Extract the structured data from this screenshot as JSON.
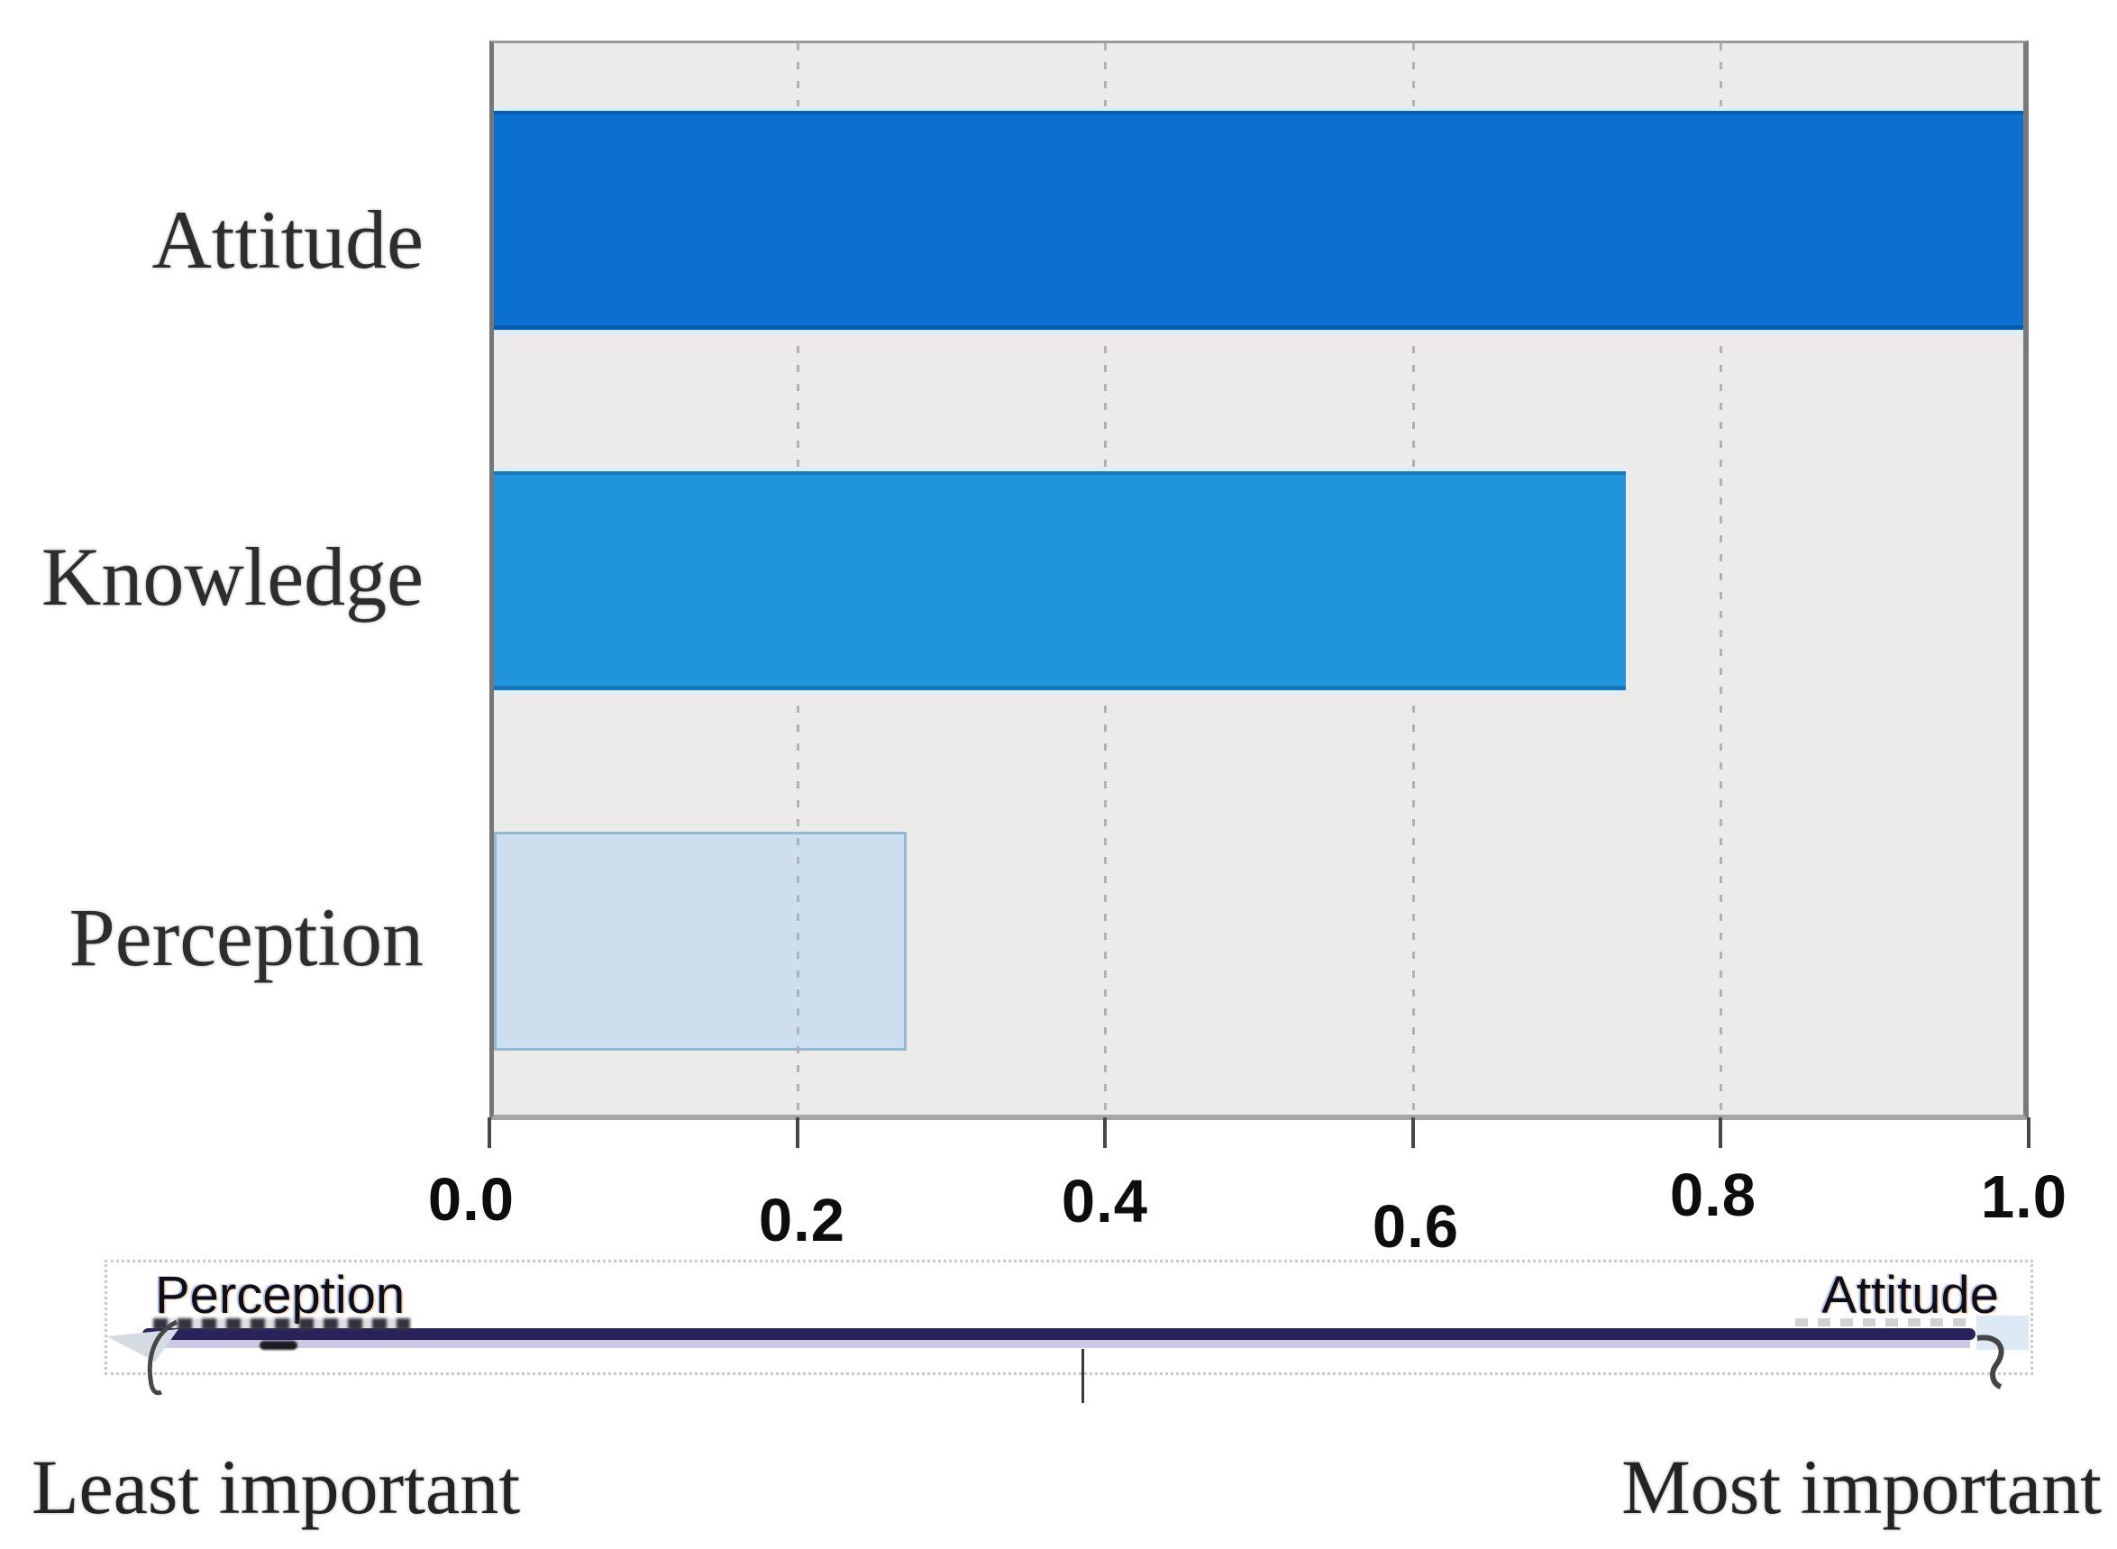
{
  "chart_data": {
    "type": "bar",
    "orientation": "horizontal",
    "title": "",
    "xlabel": "",
    "ylabel": "",
    "categories": [
      "Attitude",
      "Knowledge",
      "Perception"
    ],
    "values": [
      1.0,
      0.74,
      0.27
    ],
    "xlim": [
      0.0,
      1.0
    ],
    "x_ticks": [
      0.0,
      0.2,
      0.4,
      0.6,
      0.8,
      1.0
    ],
    "grid": "dashed-vertical",
    "legend": "none",
    "bar_colors": [
      "#0b70cf",
      "#2095dc",
      "#cddeec"
    ],
    "perception_bar_border": "#92b9d6",
    "plot_background": "#ecebe9"
  },
  "axis": {
    "tick_labels": [
      "0.0",
      "0.2",
      "0.4",
      "0.6",
      "0.8",
      "1.0"
    ]
  },
  "slider": {
    "left_label": "Perception",
    "right_label": "Attitude",
    "line_color": "#29235c"
  },
  "footer": {
    "left": "Least important",
    "right": "Most important"
  }
}
